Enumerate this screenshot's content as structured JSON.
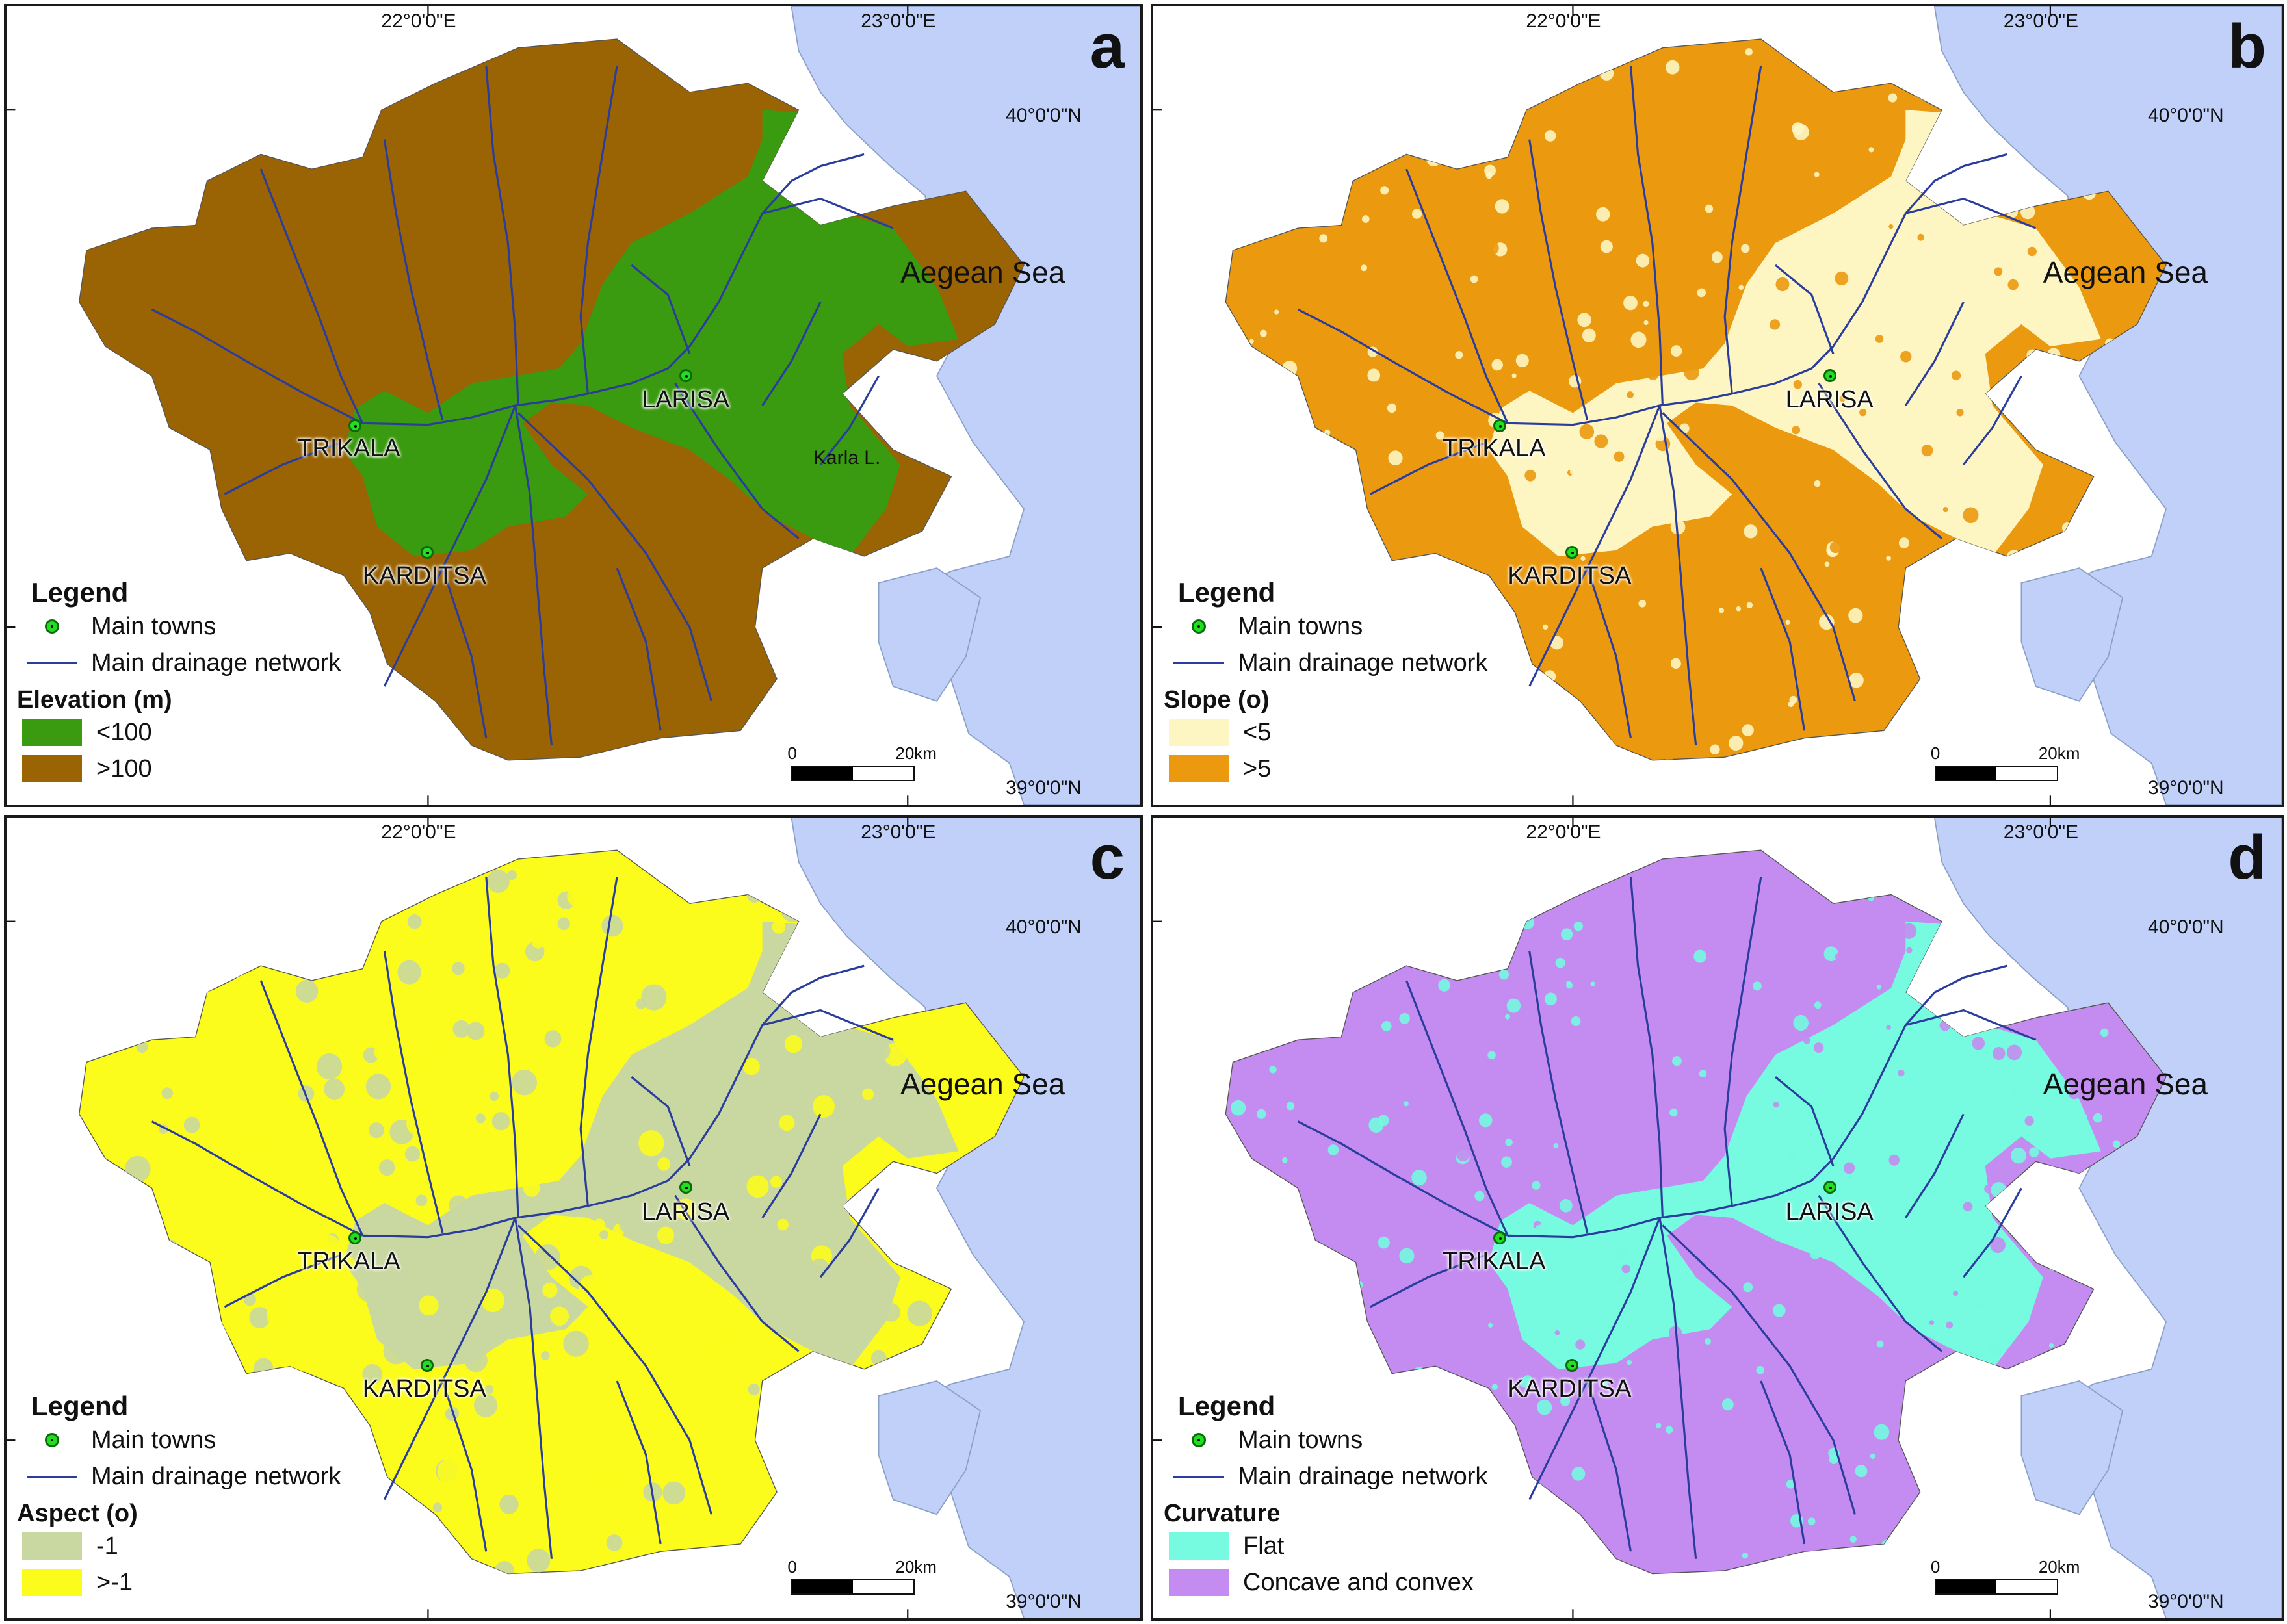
{
  "colors": {
    "sea": "#c0d0f8",
    "land": "#ffffff",
    "drainage": "#2a3c9c",
    "town": "#22dd22",
    "elev_low": "#3a9a10",
    "elev_high": "#9a6404",
    "slope_low": "#fdf6c2",
    "slope_high": "#eb9a10",
    "aspect_flat": "#c9d7a0",
    "aspect_other": "#fcfc1c",
    "curv_flat": "#76fae0",
    "curv_concave": "#c48cf0"
  },
  "panels": [
    {
      "letter": "a",
      "theme": "elevation",
      "coords": {
        "lon1": "22°0'0\"E",
        "lon2": "23°0'0\"E",
        "lat_top": "40°0'0\"N",
        "lat_bot": "39°0'0\"N"
      },
      "sea_label": "Aegean Sea",
      "lake_label": "Karla L.",
      "towns": [
        "TRIKALA",
        "LARISA",
        "KARDITSA"
      ],
      "legend": {
        "title": "Legend",
        "towns_label": "Main towns",
        "drainage_label": "Main drainage network",
        "class_title": "Elevation (m)",
        "classes": [
          {
            "label": "<100",
            "color": "#3a9a10"
          },
          {
            "label": ">100",
            "color": "#9a6404"
          }
        ]
      },
      "scale": {
        "zero": "0",
        "dist": "20km"
      }
    },
    {
      "letter": "b",
      "theme": "slope",
      "coords": {
        "lon1": "22°0'0\"E",
        "lon2": "23°0'0\"E",
        "lat_top": "40°0'0\"N",
        "lat_bot": "39°0'0\"N"
      },
      "sea_label": "Aegean Sea",
      "towns": [
        "TRIKALA",
        "LARISA",
        "KARDITSA"
      ],
      "legend": {
        "title": "Legend",
        "towns_label": "Main towns",
        "drainage_label": "Main drainage network",
        "class_title": "Slope (o)",
        "classes": [
          {
            "label": "<5",
            "color": "#fdf6c2"
          },
          {
            "label": ">5",
            "color": "#eb9a10"
          }
        ]
      },
      "scale": {
        "zero": "0",
        "dist": "20km"
      }
    },
    {
      "letter": "c",
      "theme": "aspect",
      "coords": {
        "lon1": "22°0'0\"E",
        "lon2": "23°0'0\"E",
        "lat_top": "40°0'0\"N",
        "lat_bot": "39°0'0\"N"
      },
      "sea_label": "Aegean Sea",
      "towns": [
        "TRIKALA",
        "LARISA",
        "KARDITSA"
      ],
      "legend": {
        "title": "Legend",
        "towns_label": "Main towns",
        "drainage_label": "Main drainage network",
        "class_title": "Aspect (o)",
        "classes": [
          {
            "label": "-1",
            "color": "#c9d7a0"
          },
          {
            "label": ">-1",
            "color": "#fcfc1c"
          }
        ]
      },
      "scale": {
        "zero": "0",
        "dist": "20km"
      }
    },
    {
      "letter": "d",
      "theme": "curvature",
      "coords": {
        "lon1": "22°0'0\"E",
        "lon2": "23°0'0\"E",
        "lat_top": "40°0'0\"N",
        "lat_bot": "39°0'0\"N"
      },
      "sea_label": "Aegean Sea",
      "towns": [
        "TRIKALA",
        "LARISA",
        "KARDITSA"
      ],
      "legend": {
        "title": "Legend",
        "towns_label": "Main towns",
        "drainage_label": "Main drainage network",
        "class_title": "Curvature",
        "classes": [
          {
            "label": "Flat",
            "color": "#76fae0"
          },
          {
            "label": "Concave and convex",
            "color": "#c48cf0"
          }
        ]
      },
      "scale": {
        "zero": "0",
        "dist": "20km"
      }
    }
  ]
}
